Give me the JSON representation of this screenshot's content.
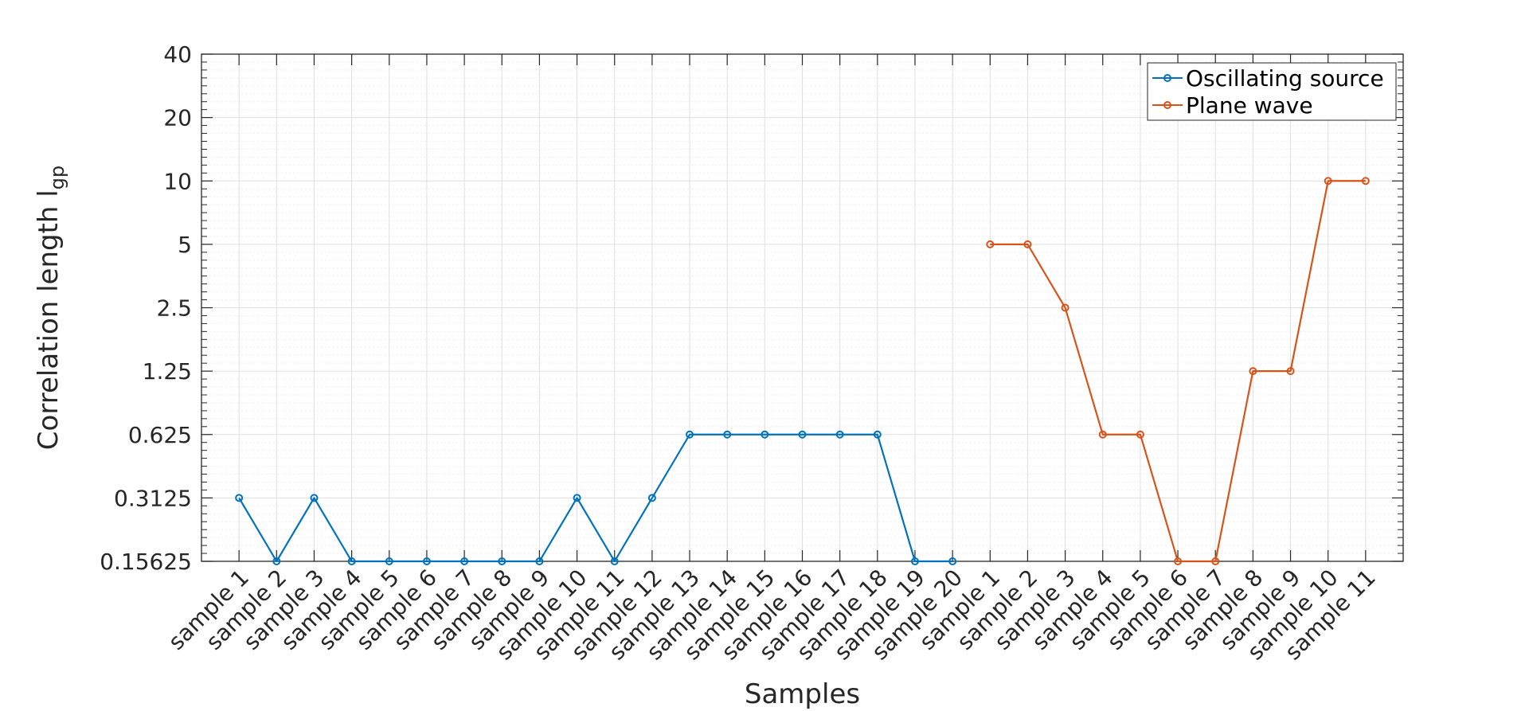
{
  "chart_data": {
    "type": "line",
    "xlabel": "Samples",
    "ylabel": "Correlation length l",
    "ylabel_subscript": "gp",
    "yscale": "log",
    "ylim": [
      0.15625,
      40
    ],
    "yticks": [
      0.15625,
      0.3125,
      0.625,
      1.25,
      2.5,
      5,
      10,
      20,
      40
    ],
    "ytick_labels": [
      "0.15625",
      "0.3125",
      "0.625",
      "1.25",
      "2.5",
      "5",
      "10",
      "20",
      "40"
    ],
    "grid": true,
    "legend_position": "top-right",
    "categories": [
      "sample 1",
      "sample 2",
      "sample 3",
      "sample 4",
      "sample 5",
      "sample 6",
      "sample 7",
      "sample 8",
      "sample 9",
      "sample 10",
      "sample 11",
      "sample 12",
      "sample 13",
      "sample 14",
      "sample 15",
      "sample 16",
      "sample 17",
      "sample 18",
      "sample 19",
      "sample 20",
      "sample 1",
      "sample 2",
      "sample 3",
      "sample 4",
      "sample 5",
      "sample 6",
      "sample 7",
      "sample 8",
      "sample 9",
      "sample 10",
      "sample 11"
    ],
    "series": [
      {
        "name": "Oscillating source",
        "color": "#0072BD",
        "x": [
          1,
          2,
          3,
          4,
          5,
          6,
          7,
          8,
          9,
          10,
          11,
          12,
          13,
          14,
          15,
          16,
          17,
          18,
          19,
          20
        ],
        "values": [
          0.3125,
          0.15625,
          0.3125,
          0.15625,
          0.15625,
          0.15625,
          0.15625,
          0.15625,
          0.15625,
          0.3125,
          0.15625,
          0.3125,
          0.625,
          0.625,
          0.625,
          0.625,
          0.625,
          0.625,
          0.15625,
          0.15625
        ]
      },
      {
        "name": "Plane wave",
        "color": "#D95319",
        "x": [
          21,
          22,
          23,
          24,
          25,
          26,
          27,
          28,
          29,
          30,
          31
        ],
        "values": [
          5,
          5,
          2.5,
          0.625,
          0.625,
          0.15625,
          0.15625,
          1.25,
          1.25,
          10,
          10
        ]
      }
    ]
  }
}
